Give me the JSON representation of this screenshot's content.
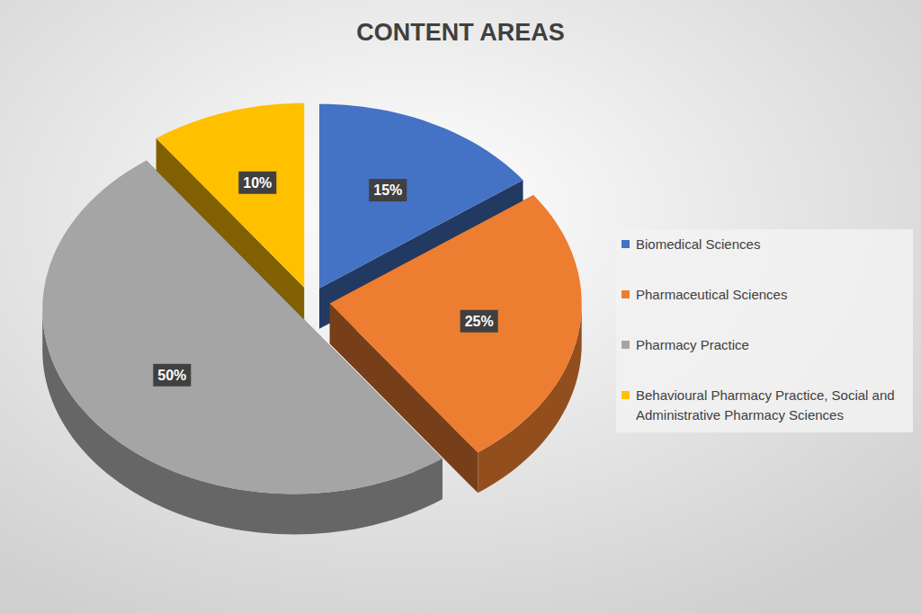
{
  "chart_data": {
    "type": "pie",
    "title": "CONTENT AREAS",
    "categories": [
      "Biomedical Sciences",
      "Pharmaceutical Sciences",
      "Pharmacy Practice",
      "Behavioural Pharmacy Practice, Social and Administrative Pharmacy Sciences"
    ],
    "values": [
      15,
      25,
      50,
      10
    ],
    "value_labels": [
      "15%",
      "25%",
      "50%",
      "10%"
    ],
    "colors": [
      "#4472c4",
      "#ed7d31",
      "#a5a5a5",
      "#ffc000"
    ],
    "data_labels": true,
    "legend": "right"
  }
}
